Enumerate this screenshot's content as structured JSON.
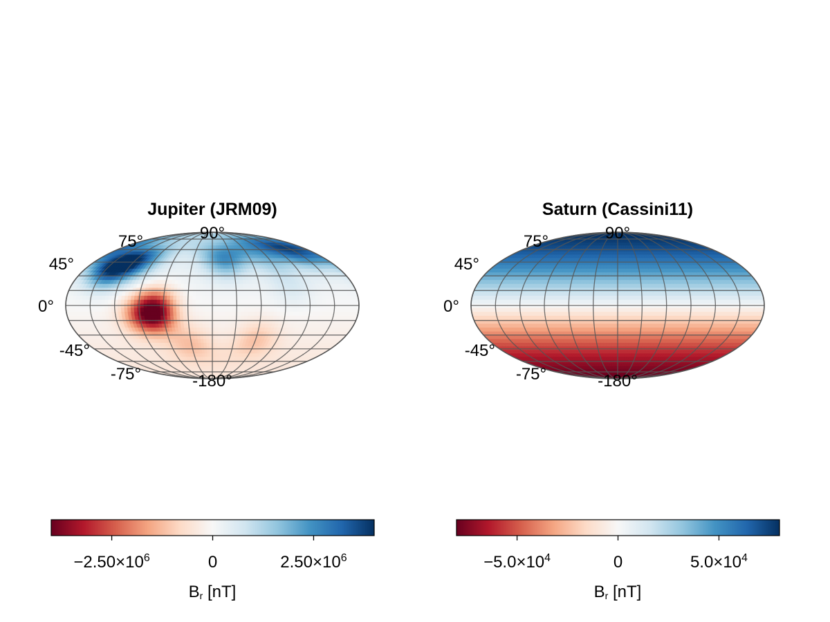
{
  "chart_data": [
    {
      "type": "heatmap",
      "projection": "mollweide",
      "title": "Jupiter (JRM09)",
      "lat_tick_labels": [
        "90°",
        "75°",
        "45°",
        "0°",
        "-45°",
        "-75°",
        "-180°"
      ],
      "colormap": "RdBu",
      "color_range": [
        -4000000,
        4000000
      ],
      "colorbar": {
        "label_main": "B",
        "label_sub": "r",
        "label_rest": " [nT]",
        "ticks": [
          {
            "value": -2500000,
            "mantissa": "−2.50×10",
            "exp": "6"
          },
          {
            "value": 0,
            "mantissa": "0",
            "exp": ""
          },
          {
            "value": 2500000,
            "mantissa": "2.50×10",
            "exp": "6"
          }
        ]
      },
      "field_features": [
        {
          "lat": 40,
          "lon": -140,
          "value": 3800000
        },
        {
          "lat": 45,
          "lon": -110,
          "value": 1800000
        },
        {
          "lat": 50,
          "lon": 20,
          "value": 2200000
        },
        {
          "lat": 55,
          "lon": 90,
          "value": 1500000
        },
        {
          "lat": 60,
          "lon": 150,
          "value": 2800000
        },
        {
          "lat": 20,
          "lon": 100,
          "value": 500000
        },
        {
          "lat": -5,
          "lon": -70,
          "value": -3800000
        },
        {
          "lat": -10,
          "lon": -90,
          "value": -1500000
        },
        {
          "lat": -35,
          "lon": 60,
          "value": -900000
        },
        {
          "lat": -40,
          "lon": -30,
          "value": -900000
        }
      ]
    },
    {
      "type": "heatmap",
      "projection": "mollweide",
      "title": "Saturn (Cassini11)",
      "lat_tick_labels": [
        "90°",
        "75°",
        "45°",
        "0°",
        "-45°",
        "-75°",
        "-180°"
      ],
      "colormap": "RdBu",
      "color_range": [
        -80000,
        80000
      ],
      "colorbar": {
        "label_main": "B",
        "label_sub": "r",
        "label_rest": " [nT]",
        "ticks": [
          {
            "value": -50000,
            "mantissa": "−5.0×10",
            "exp": "4"
          },
          {
            "value": 0,
            "mantissa": "0",
            "exp": ""
          },
          {
            "value": 50000,
            "mantissa": "5.0×10",
            "exp": "4"
          }
        ]
      },
      "field_model": {
        "kind": "axisymmetric",
        "pole_value": 80000
      }
    }
  ]
}
